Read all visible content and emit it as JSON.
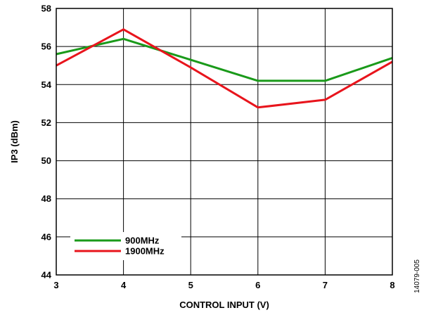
{
  "chart_data": {
    "type": "line",
    "title": "",
    "xlabel": "CONTROL INPUT (V)",
    "ylabel": "IP3 (dBm)",
    "x": [
      3,
      4,
      5,
      6,
      7,
      8
    ],
    "xlim": [
      3,
      8
    ],
    "ylim": [
      44,
      58
    ],
    "xticks": [
      "3",
      "4",
      "5",
      "6",
      "7",
      "8"
    ],
    "yticks": [
      "44",
      "46",
      "48",
      "50",
      "52",
      "54",
      "56",
      "58"
    ],
    "grid": true,
    "legend_position": "bottom-left",
    "series": [
      {
        "name": "900MHz",
        "color": "#1a9a1a",
        "values": [
          55.6,
          56.4,
          55.3,
          54.2,
          54.2,
          55.4
        ]
      },
      {
        "name": "1900MHz",
        "color": "#e8141c",
        "values": [
          55.0,
          56.9,
          54.9,
          52.8,
          53.2,
          55.2
        ]
      }
    ]
  },
  "figure_code": "14079-005"
}
